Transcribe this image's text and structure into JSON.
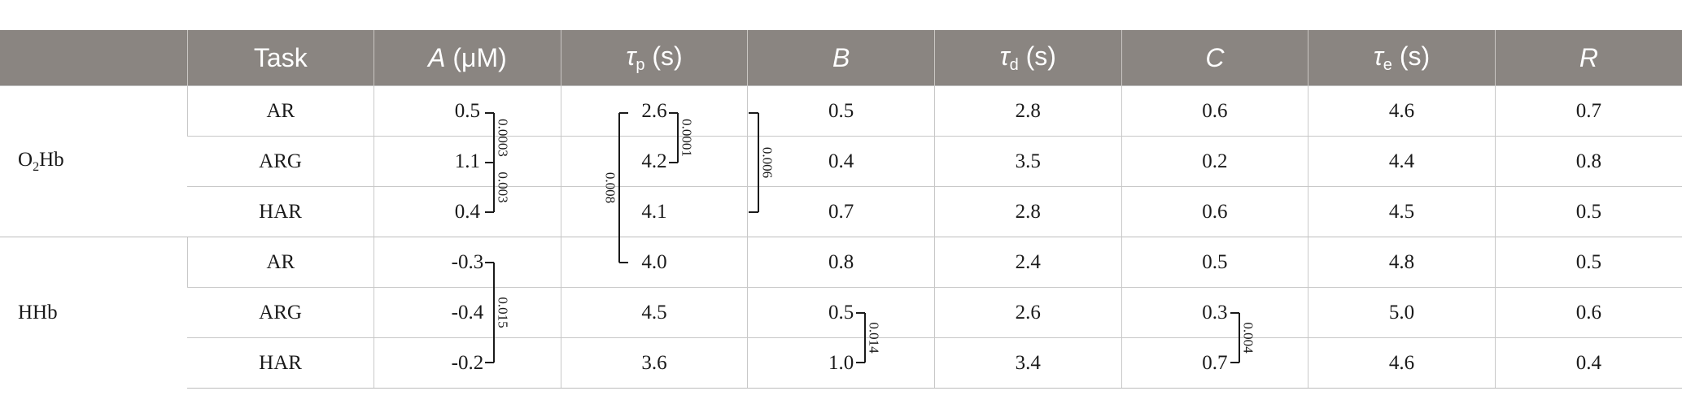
{
  "header": {
    "task": "Task",
    "A_var": "A",
    "A_unit": " (μM)",
    "tp_var": "τ",
    "tp_sub": "p",
    "tp_unit": " (s)",
    "B": "B",
    "td_var": "τ",
    "td_sub": "d",
    "td_unit": " (s)",
    "C": "C",
    "te_var": "τ",
    "te_sub": "e",
    "te_unit": " (s)",
    "R": "R"
  },
  "groups": {
    "o2hb": {
      "pre": "O",
      "sub": "2",
      "post": "Hb"
    },
    "hhb": {
      "label": "HHb"
    }
  },
  "rows": [
    {
      "task": "AR",
      "A": "0.5",
      "tp": "2.6",
      "B": "0.5",
      "td": "2.8",
      "C": "0.6",
      "te": "4.6",
      "R": "0.7"
    },
    {
      "task": "ARG",
      "A": "1.1",
      "tp": "4.2",
      "B": "0.4",
      "td": "3.5",
      "C": "0.2",
      "te": "4.4",
      "R": "0.8"
    },
    {
      "task": "HAR",
      "A": "0.4",
      "tp": "4.1",
      "B": "0.7",
      "td": "2.8",
      "C": "0.6",
      "te": "4.5",
      "R": "0.5"
    },
    {
      "task": "AR",
      "A": "-0.3",
      "tp": "4.0",
      "B": "0.8",
      "td": "2.4",
      "C": "0.5",
      "te": "4.8",
      "R": "0.5"
    },
    {
      "task": "ARG",
      "A": "-0.4",
      "tp": "4.5",
      "B": "0.5",
      "td": "2.6",
      "C": "0.3",
      "te": "5.0",
      "R": "0.6"
    },
    {
      "task": "HAR",
      "A": "-0.2",
      "tp": "3.6",
      "B": "1.0",
      "td": "3.4",
      "C": "0.7",
      "te": "4.6",
      "R": "0.4"
    }
  ],
  "brackets": [
    {
      "col": "A",
      "from": 0,
      "to": 1,
      "side": "right",
      "p": "0.0003"
    },
    {
      "col": "A",
      "from": 1,
      "to": 2,
      "side": "right",
      "p": "0.003"
    },
    {
      "col": "A",
      "from": 3,
      "to": 5,
      "side": "right",
      "p": "0.015"
    },
    {
      "col": "tp",
      "from": 0,
      "to": 1,
      "side": "right",
      "p": "0.0001"
    },
    {
      "col": "tp",
      "from": 0,
      "to": 3,
      "side": "left",
      "p": "0.008"
    },
    {
      "col": "tp",
      "from": 0,
      "to": 2,
      "side": "far",
      "p": "0.006"
    },
    {
      "col": "B",
      "from": 4,
      "to": 5,
      "side": "right",
      "p": "0.014"
    },
    {
      "col": "C",
      "from": 4,
      "to": 5,
      "side": "right",
      "p": "0.004"
    }
  ]
}
